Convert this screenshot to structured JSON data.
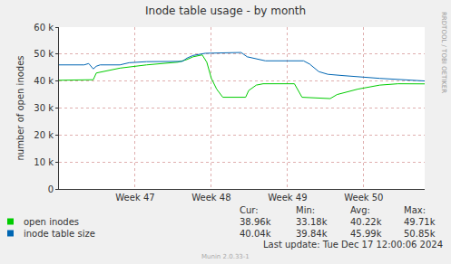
{
  "chart_data": {
    "type": "line",
    "title": "Inode table usage - by month",
    "y_label": "number of open inodes",
    "xlim": [
      46.0,
      50.8
    ],
    "xticks": [
      {
        "value": 47,
        "label": "Week 47"
      },
      {
        "value": 48,
        "label": "Week 48"
      },
      {
        "value": 49,
        "label": "Week 49"
      },
      {
        "value": 50,
        "label": "Week 50"
      }
    ],
    "ylim": [
      0,
      60000
    ],
    "yticks": [
      0,
      {
        "value": 10000,
        "label": "10 k"
      },
      {
        "value": 20000,
        "label": "20 k"
      },
      {
        "value": 30000,
        "label": "30 k"
      },
      {
        "value": 40000,
        "label": "40 k"
      },
      {
        "value": 50000,
        "label": "50 k"
      },
      {
        "value": 60000,
        "label": "60 k"
      }
    ],
    "grid": true,
    "stats_header": [
      "Cur:",
      "Min:",
      "Avg:",
      "Max:"
    ],
    "series": [
      {
        "name": "open inodes",
        "color": "#00cc00",
        "x": [
          46.0,
          46.45,
          46.49,
          46.8,
          47.15,
          47.56,
          47.68,
          47.76,
          47.88,
          47.94,
          48.0,
          48.07,
          48.15,
          48.45,
          48.49,
          48.59,
          48.68,
          49.09,
          49.19,
          49.56,
          49.65,
          49.92,
          50.21,
          50.45,
          50.8
        ],
        "values": [
          40300,
          40500,
          43000,
          44800,
          46000,
          47000,
          48000,
          49000,
          49700,
          47000,
          41000,
          37000,
          34000,
          34000,
          36500,
          38500,
          39000,
          39000,
          34000,
          33500,
          35000,
          37000,
          38500,
          39000,
          38960
        ],
        "stats": [
          "38.96k",
          "33.18k",
          "40.22k",
          "49.71k"
        ]
      },
      {
        "name": "inode table size",
        "color": "#0066b3",
        "x": [
          46.0,
          46.33,
          46.39,
          46.42,
          46.45,
          46.49,
          46.54,
          46.8,
          46.92,
          47.15,
          47.62,
          47.68,
          47.76,
          47.92,
          48.39,
          48.47,
          48.59,
          48.71,
          49.21,
          49.29,
          49.41,
          49.53,
          49.74,
          50.21,
          50.8
        ],
        "values": [
          46000,
          46000,
          46500,
          45500,
          44500,
          45500,
          46000,
          46000,
          46800,
          47200,
          47300,
          48500,
          49500,
          50300,
          50600,
          49000,
          48300,
          47500,
          47500,
          46300,
          43500,
          42500,
          42000,
          41000,
          40040
        ],
        "stats": [
          "40.04k",
          "39.84k",
          "45.99k",
          "50.85k"
        ]
      }
    ],
    "footer": "Last update: Tue Dec 17 12:00:06 2024",
    "credit": "Munin 2.0.33-1",
    "side_text": "RRDTOOL / TOBI OETIKER"
  }
}
